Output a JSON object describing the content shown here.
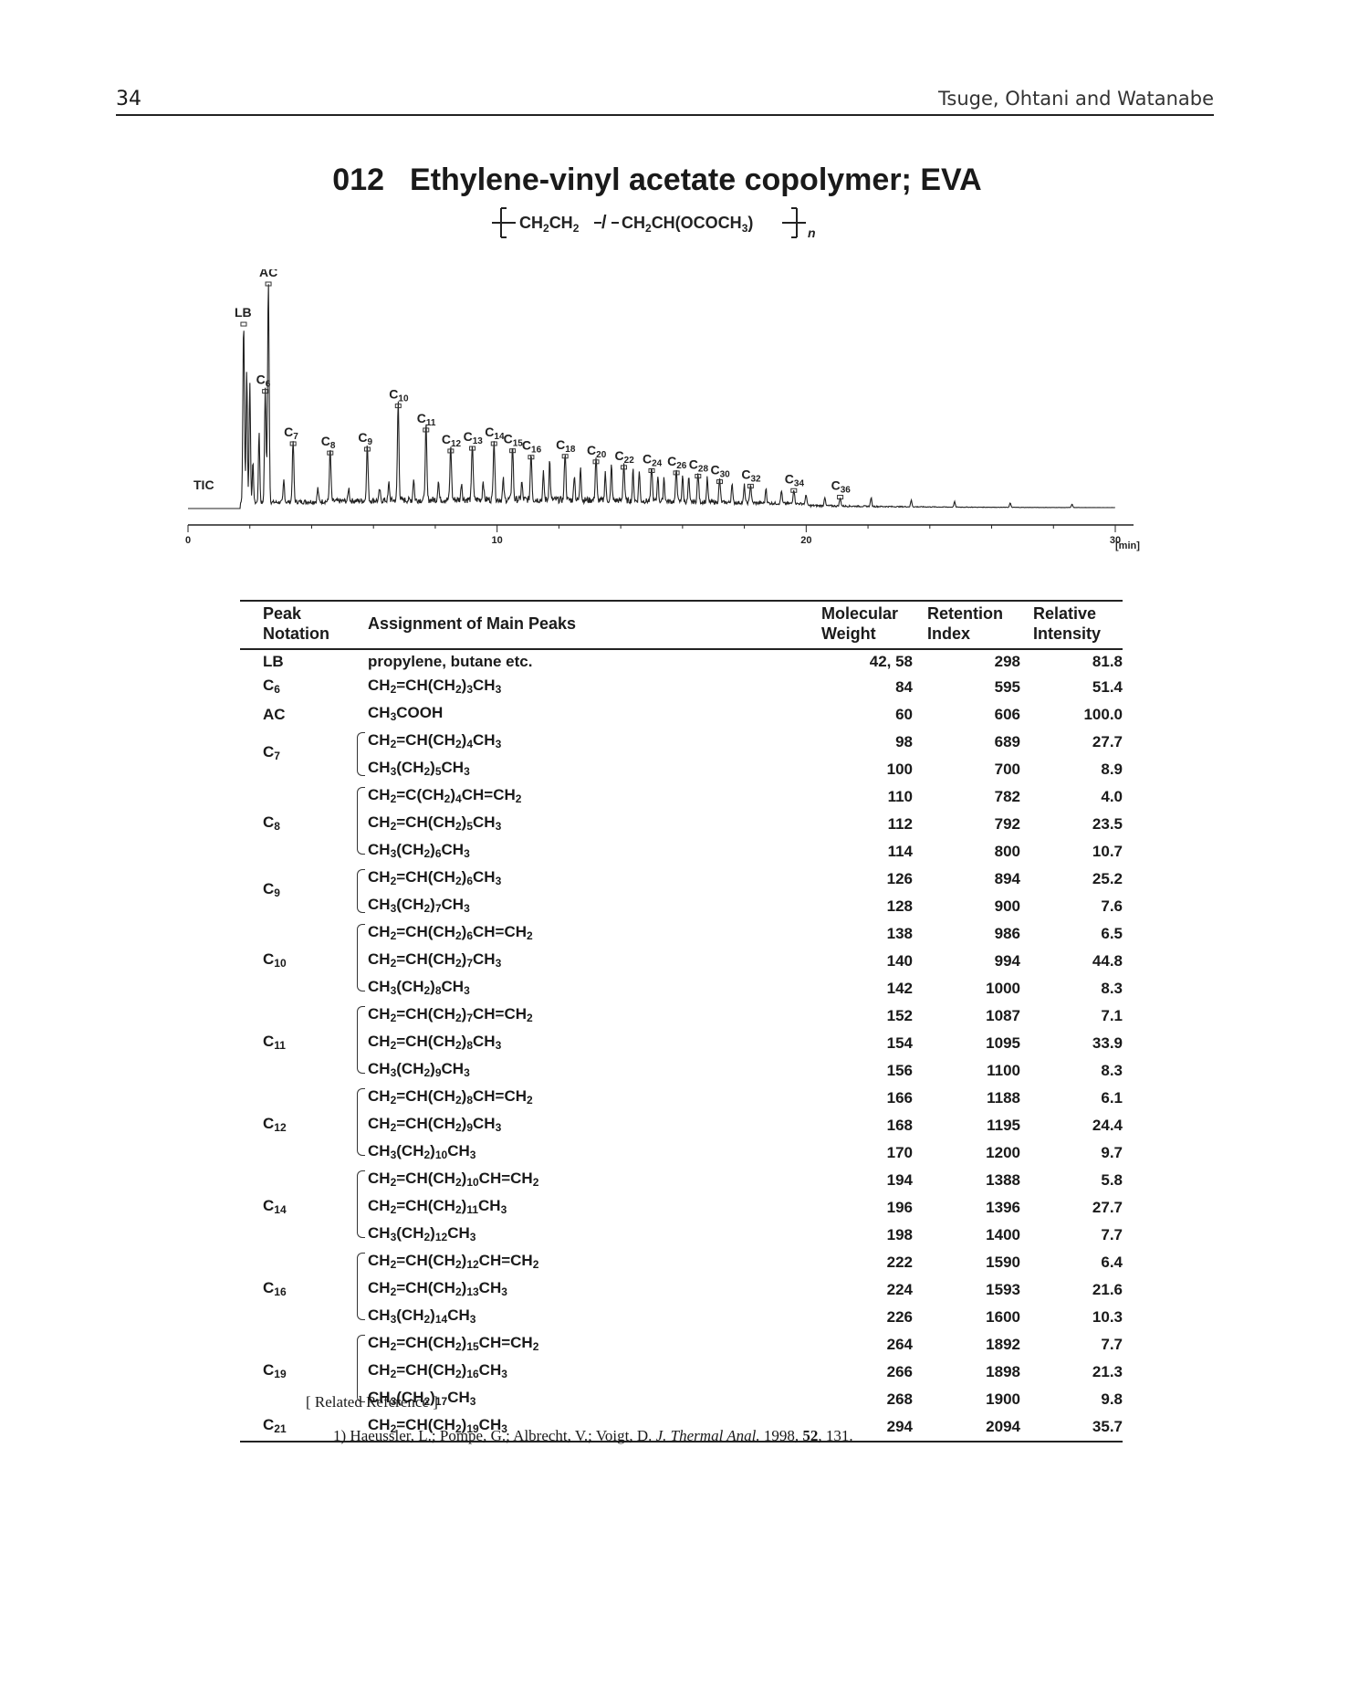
{
  "header": {
    "page_number": "34",
    "authors": "Tsuge, Ohtani and Watanabe"
  },
  "title": {
    "number": "012",
    "text": "Ethylene-vinyl acetate copolymer; EVA"
  },
  "formula": {
    "part1": "CH",
    "s1": "2",
    "part2": "CH",
    "s2": "2",
    "sep": "/",
    "part3": "CH",
    "s3": "2",
    "part4": "CH(OCOCH",
    "s4": "3",
    "part5": ")",
    "n": "n"
  },
  "chart_data": {
    "type": "line",
    "trace_label": "TIC",
    "x_unit": "[min]",
    "xlim": [
      0,
      30
    ],
    "x_ticks": [
      "0",
      "10",
      "20",
      "30"
    ],
    "peaks": [
      {
        "label": "LB",
        "x": 1.8,
        "y": 81.8
      },
      {
        "label": "C6",
        "x": 2.5,
        "y": 51.4
      },
      {
        "label": "AC",
        "x": 2.6,
        "y": 100.0
      },
      {
        "label": "C7",
        "x": 3.4,
        "y": 27.7
      },
      {
        "label": "C8",
        "x": 4.6,
        "y": 23.5
      },
      {
        "label": "C9",
        "x": 5.8,
        "y": 25.2
      },
      {
        "label": "C10",
        "x": 6.8,
        "y": 44.8
      },
      {
        "label": "C11",
        "x": 7.7,
        "y": 33.9
      },
      {
        "label": "C12",
        "x": 8.5,
        "y": 24.4
      },
      {
        "label": "C13",
        "x": 9.2,
        "y": 25.6
      },
      {
        "label": "C14",
        "x": 9.9,
        "y": 27.7
      },
      {
        "label": "C15",
        "x": 10.5,
        "y": 24.5
      },
      {
        "label": "C16",
        "x": 11.1,
        "y": 21.6
      },
      {
        "label": "C18",
        "x": 12.2,
        "y": 22.0
      },
      {
        "label": "C20",
        "x": 13.2,
        "y": 19.5
      },
      {
        "label": "C22",
        "x": 14.1,
        "y": 17.0
      },
      {
        "label": "C24",
        "x": 15.0,
        "y": 15.5
      },
      {
        "label": "C26",
        "x": 15.8,
        "y": 14.5
      },
      {
        "label": "C28",
        "x": 16.5,
        "y": 13.0
      },
      {
        "label": "C30",
        "x": 17.2,
        "y": 10.5
      },
      {
        "label": "C32",
        "x": 18.2,
        "y": 8.5
      },
      {
        "label": "C34",
        "x": 19.6,
        "y": 6.5
      },
      {
        "label": "C36",
        "x": 21.1,
        "y": 3.5
      }
    ]
  },
  "table": {
    "headers": {
      "peak_l1": "Peak",
      "peak_l2": "Notation",
      "assignment": "Assignment of Main Peaks",
      "mw_l1": "Molecular",
      "mw_l2": "Weight",
      "ri_l1": "Retention",
      "ri_l2": "Index",
      "rel_l1": "Relative",
      "rel_l2": "Intensity"
    },
    "rows": [
      {
        "peak": "LB",
        "asn": "propylene, butane etc.",
        "mw": "42, 58",
        "ri": "298",
        "rel": "81.8"
      },
      {
        "peak": "C6",
        "asn": "CH2=CH(CH2)3CH3",
        "mw": "84",
        "ri": "595",
        "rel": "51.4"
      },
      {
        "peak": "AC",
        "asn": "CH3COOH",
        "mw": "60",
        "ri": "606",
        "rel": "100.0"
      },
      {
        "peak": "C7",
        "asn": "CH2=CH(CH2)4CH3",
        "mw": "98",
        "ri": "689",
        "rel": "27.7"
      },
      {
        "peak": "",
        "asn": "CH3(CH2)5CH3",
        "mw": "100",
        "ri": "700",
        "rel": "8.9"
      },
      {
        "peak": "",
        "asn": "CH2=C(CH2)4CH=CH2",
        "mw": "110",
        "ri": "782",
        "rel": "4.0"
      },
      {
        "peak": "C8",
        "asn": "CH2=CH(CH2)5CH3",
        "mw": "112",
        "ri": "792",
        "rel": "23.5"
      },
      {
        "peak": "",
        "asn": "CH3(CH2)6CH3",
        "mw": "114",
        "ri": "800",
        "rel": "10.7"
      },
      {
        "peak": "C9",
        "asn": "CH2=CH(CH2)6CH3",
        "mw": "126",
        "ri": "894",
        "rel": "25.2"
      },
      {
        "peak": "",
        "asn": "CH3(CH2)7CH3",
        "mw": "128",
        "ri": "900",
        "rel": "7.6"
      },
      {
        "peak": "",
        "asn": "CH2=CH(CH2)6CH=CH2",
        "mw": "138",
        "ri": "986",
        "rel": "6.5"
      },
      {
        "peak": "C10",
        "asn": "CH2=CH(CH2)7CH3",
        "mw": "140",
        "ri": "994",
        "rel": "44.8"
      },
      {
        "peak": "",
        "asn": "CH3(CH2)8CH3",
        "mw": "142",
        "ri": "1000",
        "rel": "8.3"
      },
      {
        "peak": "",
        "asn": "CH2=CH(CH2)7CH=CH2",
        "mw": "152",
        "ri": "1087",
        "rel": "7.1"
      },
      {
        "peak": "C11",
        "asn": "CH2=CH(CH2)8CH3",
        "mw": "154",
        "ri": "1095",
        "rel": "33.9"
      },
      {
        "peak": "",
        "asn": "CH3(CH2)9CH3",
        "mw": "156",
        "ri": "1100",
        "rel": "8.3"
      },
      {
        "peak": "",
        "asn": "CH2=CH(CH2)8CH=CH2",
        "mw": "166",
        "ri": "1188",
        "rel": "6.1"
      },
      {
        "peak": "C12",
        "asn": "CH2=CH(CH2)9CH3",
        "mw": "168",
        "ri": "1195",
        "rel": "24.4"
      },
      {
        "peak": "",
        "asn": "CH3(CH2)10CH3",
        "mw": "170",
        "ri": "1200",
        "rel": "9.7"
      },
      {
        "peak": "",
        "asn": "CH2=CH(CH2)10CH=CH2",
        "mw": "194",
        "ri": "1388",
        "rel": "5.8"
      },
      {
        "peak": "C14",
        "asn": "CH2=CH(CH2)11CH3",
        "mw": "196",
        "ri": "1396",
        "rel": "27.7"
      },
      {
        "peak": "",
        "asn": "CH3(CH2)12CH3",
        "mw": "198",
        "ri": "1400",
        "rel": "7.7"
      },
      {
        "peak": "",
        "asn": "CH2=CH(CH2)12CH=CH2",
        "mw": "222",
        "ri": "1590",
        "rel": "6.4"
      },
      {
        "peak": "C16",
        "asn": "CH2=CH(CH2)13CH3",
        "mw": "224",
        "ri": "1593",
        "rel": "21.6"
      },
      {
        "peak": "",
        "asn": "CH3(CH2)14CH3",
        "mw": "226",
        "ri": "1600",
        "rel": "10.3"
      },
      {
        "peak": "",
        "asn": "CH2=CH(CH2)15CH=CH2",
        "mw": "264",
        "ri": "1892",
        "rel": "7.7"
      },
      {
        "peak": "C19",
        "asn": "CH2=CH(CH2)16CH3",
        "mw": "266",
        "ri": "1898",
        "rel": "21.3"
      },
      {
        "peak": "",
        "asn": "CH3(CH2)17CH3",
        "mw": "268",
        "ri": "1900",
        "rel": "9.8"
      },
      {
        "peak": "C21",
        "asn": "CH2=CH(CH2)19CH3",
        "mw": "294",
        "ri": "2094",
        "rel": "35.7"
      }
    ]
  },
  "reference": {
    "heading": "[ Related Reference ]",
    "num": "1)",
    "authors": "Haeussler, L.; Pompe, G.; Albrecht, V.; Voigt, D.",
    "journal": "J. Thermal Anal.",
    "year": "1998,",
    "volume": "52",
    "pages": ", 131."
  }
}
